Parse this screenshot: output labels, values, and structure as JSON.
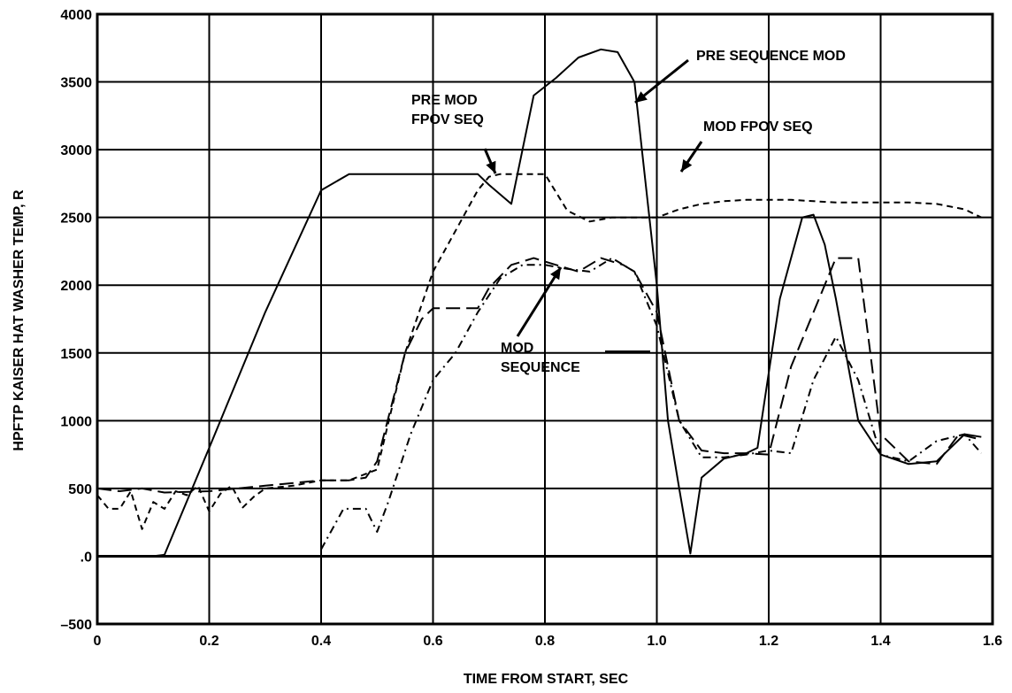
{
  "chart_data": {
    "type": "line",
    "title": "",
    "xlabel": "TIME FROM START, SEC",
    "ylabel": "HPFTP KAISER HAT WASHER TEMP, R",
    "xlim": [
      0,
      1.6
    ],
    "ylim": [
      -500,
      4000
    ],
    "xticks": [
      0,
      0.2,
      0.4,
      0.6,
      0.8,
      1.0,
      1.2,
      1.4,
      1.6
    ],
    "xtick_labels": [
      "0",
      "0.2",
      "0.4",
      "0.6",
      "0.8",
      "1.0",
      "1.2",
      "1.4",
      "1.6"
    ],
    "yticks": [
      -500,
      0,
      500,
      1000,
      1500,
      2000,
      2500,
      3000,
      3500,
      4000
    ],
    "ytick_labels": [
      "–500",
      ".0",
      "500",
      "1000",
      "1500",
      "2000",
      "2500",
      "3000",
      "3500",
      "4000"
    ],
    "grid": true,
    "legend": "none (series labeled by annotations with arrows)",
    "series": [
      {
        "name": "PRE SEQUENCE MOD",
        "style": "solid",
        "x": [
          0,
          0.1,
          0.12,
          0.2,
          0.3,
          0.4,
          0.45,
          0.5,
          0.55,
          0.6,
          0.64,
          0.68,
          0.7,
          0.74,
          0.78,
          0.82,
          0.86,
          0.9,
          0.93,
          0.96,
          1.0,
          1.02,
          1.04,
          1.06,
          1.08,
          1.12,
          1.16,
          1.18,
          1.22,
          1.26,
          1.28,
          1.3,
          1.32,
          1.36,
          1.4,
          1.45,
          1.5,
          1.55,
          1.58
        ],
        "y": [
          0,
          0,
          10,
          800,
          1800,
          2700,
          2820,
          2820,
          2820,
          2820,
          2820,
          2820,
          2740,
          2600,
          3400,
          3530,
          3680,
          3740,
          3720,
          3500,
          2000,
          1000,
          500,
          20,
          580,
          720,
          760,
          800,
          1900,
          2500,
          2520,
          2300,
          1900,
          1000,
          750,
          680,
          700,
          900,
          880
        ]
      },
      {
        "name": "MOD FPOV SEQ",
        "style": "long-dash",
        "x": [
          0,
          0.04,
          0.08,
          0.12,
          0.2,
          0.3,
          0.4,
          0.45,
          0.48,
          0.5,
          0.55,
          0.58,
          0.6,
          0.64,
          0.68,
          0.7,
          0.74,
          0.78,
          0.82,
          0.86,
          0.9,
          0.94,
          0.96,
          1.0,
          1.04,
          1.08,
          1.12,
          1.16,
          1.2,
          1.24,
          1.28,
          1.32,
          1.36,
          1.4,
          1.45,
          1.5,
          1.54,
          1.58
        ],
        "y": [
          500,
          480,
          500,
          470,
          480,
          520,
          560,
          560,
          580,
          700,
          1500,
          1750,
          1830,
          1830,
          1830,
          1980,
          2150,
          2200,
          2150,
          2100,
          2200,
          2150,
          2100,
          1800,
          1000,
          780,
          760,
          760,
          750,
          1400,
          1800,
          2200,
          2200,
          900,
          700,
          680,
          900,
          860
        ]
      },
      {
        "name": "PRE MOD FPOV SEQ",
        "style": "short-dash",
        "x": [
          0,
          0.02,
          0.04,
          0.06,
          0.08,
          0.1,
          0.12,
          0.14,
          0.16,
          0.18,
          0.2,
          0.22,
          0.24,
          0.26,
          0.28,
          0.3,
          0.35,
          0.4,
          0.45,
          0.5,
          0.55,
          0.6,
          0.64,
          0.68,
          0.7,
          0.72,
          0.76,
          0.8,
          0.84,
          0.88,
          0.92,
          0.96,
          1.0,
          1.04,
          1.08,
          1.12,
          1.16,
          1.2,
          1.24,
          1.28,
          1.32,
          1.36,
          1.4,
          1.45,
          1.5,
          1.55,
          1.58
        ],
        "y": [
          450,
          350,
          350,
          480,
          200,
          400,
          350,
          480,
          450,
          520,
          330,
          460,
          520,
          360,
          440,
          500,
          520,
          560,
          560,
          640,
          1500,
          2100,
          2400,
          2700,
          2800,
          2820,
          2820,
          2820,
          2550,
          2470,
          2500,
          2500,
          2500,
          2560,
          2600,
          2620,
          2630,
          2630,
          2630,
          2620,
          2610,
          2610,
          2610,
          2610,
          2600,
          2560,
          2500
        ]
      },
      {
        "name": "MOD SEQUENCE",
        "style": "dash-dot",
        "x": [
          0.4,
          0.44,
          0.48,
          0.5,
          0.52,
          0.56,
          0.6,
          0.64,
          0.68,
          0.72,
          0.76,
          0.8,
          0.84,
          0.88,
          0.92,
          0.96,
          1.0,
          1.04,
          1.08,
          1.12,
          1.16,
          1.2,
          1.24,
          1.28,
          1.32,
          1.36,
          1.4,
          1.45,
          1.5,
          1.55,
          1.58
        ],
        "y": [
          50,
          350,
          350,
          180,
          400,
          900,
          1300,
          1500,
          1800,
          2050,
          2150,
          2150,
          2120,
          2100,
          2200,
          2100,
          1700,
          1000,
          730,
          730,
          750,
          780,
          760,
          1300,
          1620,
          1300,
          750,
          700,
          850,
          900,
          760
        ]
      }
    ],
    "annotations": [
      {
        "text": "PRE SEQUENCE MOD",
        "target_series": "PRE SEQUENCE MOD"
      },
      {
        "text": "PRE MOD",
        "target_series": "PRE MOD FPOV SEQ"
      },
      {
        "text": "FPOV SEQ",
        "target_series": "PRE MOD FPOV SEQ"
      },
      {
        "text": "MOD FPOV SEQ",
        "target_series": "MOD FPOV SEQ"
      },
      {
        "text": "MOD",
        "target_series": "MOD SEQUENCE"
      },
      {
        "text": "SEQUENCE",
        "target_series": "MOD SEQUENCE"
      }
    ]
  }
}
